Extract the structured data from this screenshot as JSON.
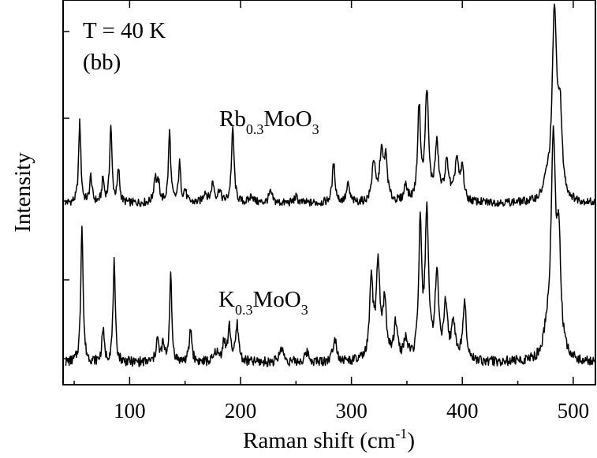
{
  "chart_data": {
    "type": "line",
    "xlabel": "Raman shift (cm",
    "xlabel_sup": "-1",
    "xlabel_end": ")",
    "ylabel": "Intensity",
    "xlim": [
      40,
      520
    ],
    "xticks": [
      100,
      200,
      300,
      400,
      500
    ],
    "xtick_labels": [
      "100",
      "200",
      "300",
      "400",
      "500"
    ],
    "grid": false,
    "annotations": {
      "temperature": "T = 40 K",
      "polarization": "(bb)",
      "rb": {
        "main": "Rb",
        "sub1": "0.3",
        "mid": "MoO",
        "sub2": "3"
      },
      "k": {
        "main": "K",
        "sub1": "0.3",
        "mid": "MoO",
        "sub2": "3"
      }
    },
    "series": [
      {
        "compound": "Rb0.3MoO3",
        "baseline": 0,
        "peaks": [
          [
            55,
            0.55,
            1.2
          ],
          [
            65,
            0.18,
            1.2
          ],
          [
            76,
            0.16,
            1.2
          ],
          [
            83,
            0.52,
            1.2
          ],
          [
            90,
            0.22,
            1.2
          ],
          [
            123,
            0.17,
            1.4
          ],
          [
            126,
            0.12,
            1.4
          ],
          [
            136,
            0.48,
            1.2
          ],
          [
            145,
            0.26,
            1.2
          ],
          [
            150,
            0.08,
            1.4
          ],
          [
            168,
            0.07,
            2
          ],
          [
            175,
            0.13,
            1.6
          ],
          [
            181,
            0.08,
            1.6
          ],
          [
            193,
            0.5,
            1.4
          ],
          [
            210,
            0.05,
            2
          ],
          [
            227,
            0.07,
            2
          ],
          [
            250,
            0.04,
            2
          ],
          [
            284,
            0.26,
            1.6
          ],
          [
            297,
            0.12,
            1.6
          ],
          [
            320,
            0.27,
            1.8
          ],
          [
            327,
            0.32,
            2
          ],
          [
            331,
            0.27,
            1.8
          ],
          [
            349,
            0.12,
            1.6
          ],
          [
            361,
            0.63,
            1.6
          ],
          [
            368,
            0.73,
            1.8
          ],
          [
            377,
            0.37,
            2
          ],
          [
            386,
            0.25,
            2.4
          ],
          [
            395,
            0.28,
            2
          ],
          [
            400,
            0.22,
            1.6
          ],
          [
            483,
            1.25,
            2.4
          ],
          [
            488,
            0.55,
            2.2
          ],
          [
            476,
            0.1,
            3
          ]
        ]
      },
      {
        "compound": "K0.3MoO3",
        "baseline": 0,
        "peaks": [
          [
            57,
            0.85,
            1.2
          ],
          [
            76,
            0.2,
            1.2
          ],
          [
            86,
            0.6,
            1.2
          ],
          [
            125,
            0.14,
            1.4
          ],
          [
            130,
            0.1,
            1.4
          ],
          [
            137,
            0.52,
            1.2
          ],
          [
            155,
            0.2,
            1.4
          ],
          [
            178,
            0.06,
            2
          ],
          [
            185,
            0.12,
            1.6
          ],
          [
            190,
            0.2,
            1.6
          ],
          [
            197,
            0.22,
            1.6
          ],
          [
            237,
            0.09,
            2
          ],
          [
            260,
            0.06,
            2
          ],
          [
            285,
            0.15,
            2
          ],
          [
            318,
            0.48,
            1.8
          ],
          [
            324,
            0.55,
            2
          ],
          [
            330,
            0.33,
            2
          ],
          [
            340,
            0.22,
            2
          ],
          [
            349,
            0.12,
            2
          ],
          [
            362,
            0.8,
            1.6
          ],
          [
            368,
            0.88,
            1.8
          ],
          [
            377,
            0.5,
            2
          ],
          [
            385,
            0.32,
            2
          ],
          [
            392,
            0.22,
            2
          ],
          [
            402,
            0.37,
            1.8
          ],
          [
            482,
            1.3,
            2.4
          ],
          [
            487,
            0.65,
            2.2
          ],
          [
            476,
            0.12,
            3
          ]
        ]
      }
    ]
  }
}
